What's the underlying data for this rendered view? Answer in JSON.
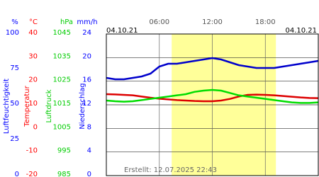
{
  "chart_data": {
    "type": "line",
    "date_left": "04.10.21",
    "date_right": "04.10.21",
    "footer": "Erstellt: 12.07.2025 22:43",
    "xlim": [
      0,
      24
    ],
    "xticks": [
      {
        "value": 6,
        "label": "06:00"
      },
      {
        "value": 12,
        "label": "12:00"
      },
      {
        "value": 18,
        "label": "18:00"
      }
    ],
    "daylight": [
      7.4,
      19.2
    ],
    "grid": true,
    "axes": [
      {
        "name": "Luftfeuchtigkeit",
        "unit": "%",
        "color": "#0000ff",
        "ylim": [
          0,
          100
        ],
        "yticks": [
          0,
          25,
          50,
          75,
          100
        ]
      },
      {
        "name": "Temperatur",
        "unit": "°C",
        "color": "#ff0000",
        "ylim": [
          -20,
          40
        ],
        "yticks": [
          -20,
          -10,
          0,
          10,
          20,
          30,
          40
        ]
      },
      {
        "name": "Luftdruck",
        "unit": "hPa",
        "color": "#00cc00",
        "ylim": [
          985,
          1045
        ],
        "yticks": [
          985,
          995,
          1005,
          1015,
          1025,
          1035,
          1045
        ]
      },
      {
        "name": "Niederschlag",
        "unit": "mm/h",
        "color": "#0000ff",
        "ylim": [
          0,
          24
        ],
        "yticks": [
          0,
          4,
          8,
          12,
          16,
          20,
          24
        ]
      }
    ],
    "x": [
      0,
      1,
      2,
      3,
      4,
      5,
      6,
      7,
      8,
      9,
      10,
      11,
      12,
      13,
      14,
      15,
      16,
      17,
      18,
      19,
      20,
      21,
      22,
      23,
      24
    ],
    "series": [
      {
        "axis": 0,
        "color": "#0000cc",
        "values": [
          69,
          68,
          68,
          69,
          70,
          72,
          77,
          79,
          79,
          80,
          81,
          82,
          83,
          82,
          80,
          78,
          77,
          76,
          76,
          76,
          77,
          78,
          79,
          80,
          81
        ]
      },
      {
        "axis": 1,
        "color": "#dd0000",
        "values": [
          14.5,
          14.4,
          14.2,
          14,
          13.5,
          13,
          12.6,
          12.3,
          12,
          11.8,
          11.6,
          11.5,
          11.5,
          11.8,
          12.5,
          13.5,
          14.2,
          14.3,
          14.2,
          14,
          13.7,
          13.4,
          13.1,
          12.9,
          12.8
        ]
      },
      {
        "axis": 2,
        "color": "#00dd00",
        "values": [
          1016.8,
          1016.5,
          1016.3,
          1016.5,
          1017,
          1017.5,
          1018,
          1018.5,
          1019,
          1019.5,
          1020.5,
          1021,
          1021.3,
          1021,
          1020,
          1019,
          1018.5,
          1018,
          1017.5,
          1017,
          1016.5,
          1016,
          1015.8,
          1015.8,
          1016
        ]
      }
    ]
  }
}
